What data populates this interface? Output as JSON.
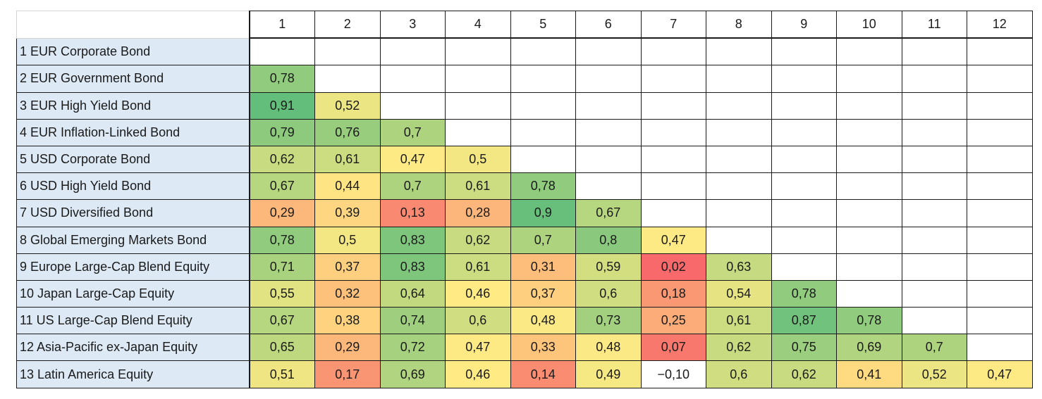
{
  "chart_data": {
    "type": "heatmap",
    "columns": [
      "1",
      "2",
      "3",
      "4",
      "5",
      "6",
      "7",
      "8",
      "9",
      "10",
      "11",
      "12"
    ],
    "rows": [
      {
        "label": "1 EUR Corporate Bond",
        "values": []
      },
      {
        "label": "2 EUR Government Bond",
        "values": [
          "0,78"
        ]
      },
      {
        "label": "3 EUR High Yield Bond",
        "values": [
          "0,91",
          "0,52"
        ]
      },
      {
        "label": "4 EUR Inflation-Linked Bond",
        "values": [
          "0,79",
          "0,76",
          "0,7"
        ]
      },
      {
        "label": "5 USD Corporate Bond",
        "values": [
          "0,62",
          "0,61",
          "0,47",
          "0,5"
        ]
      },
      {
        "label": "6 USD High Yield Bond",
        "values": [
          "0,67",
          "0,44",
          "0,7",
          "0,61",
          "0,78"
        ]
      },
      {
        "label": "7 USD Diversified Bond",
        "values": [
          "0,29",
          "0,39",
          "0,13",
          "0,28",
          "0,9",
          "0,67"
        ]
      },
      {
        "label": "8 Global Emerging Markets Bond",
        "values": [
          "0,78",
          "0,5",
          "0,83",
          "0,62",
          "0,7",
          "0,8",
          "0,47"
        ]
      },
      {
        "label": "9 Europe Large-Cap Blend Equity",
        "values": [
          "0,71",
          "0,37",
          "0,83",
          "0,61",
          "0,31",
          "0,59",
          "0,02",
          "0,63"
        ]
      },
      {
        "label": "10 Japan Large-Cap Equity",
        "values": [
          "0,55",
          "0,32",
          "0,64",
          "0,46",
          "0,37",
          "0,6",
          "0,18",
          "0,54",
          "0,78"
        ]
      },
      {
        "label": "11 US Large-Cap Blend Equity",
        "values": [
          "0,67",
          "0,38",
          "0,74",
          "0,6",
          "0,48",
          "0,73",
          "0,25",
          "0,61",
          "0,87",
          "0,78"
        ]
      },
      {
        "label": "12 Asia-Pacific ex-Japan Equity",
        "values": [
          "0,65",
          "0,29",
          "0,72",
          "0,47",
          "0,33",
          "0,48",
          "0,07",
          "0,62",
          "0,75",
          "0,69",
          "0,7"
        ]
      },
      {
        "label": "13 Latin America Equity",
        "values": [
          "0,51",
          "0,17",
          "0,69",
          "0,46",
          "0,14",
          "0,49",
          "−0,10",
          "0,6",
          "0,62",
          "0,41",
          "0,52",
          "0,47"
        ]
      }
    ],
    "color_scale": {
      "low": "#f8696b",
      "mid": "#ffeb84",
      "high": "#63be7b",
      "below_range": "#ffffff"
    }
  }
}
